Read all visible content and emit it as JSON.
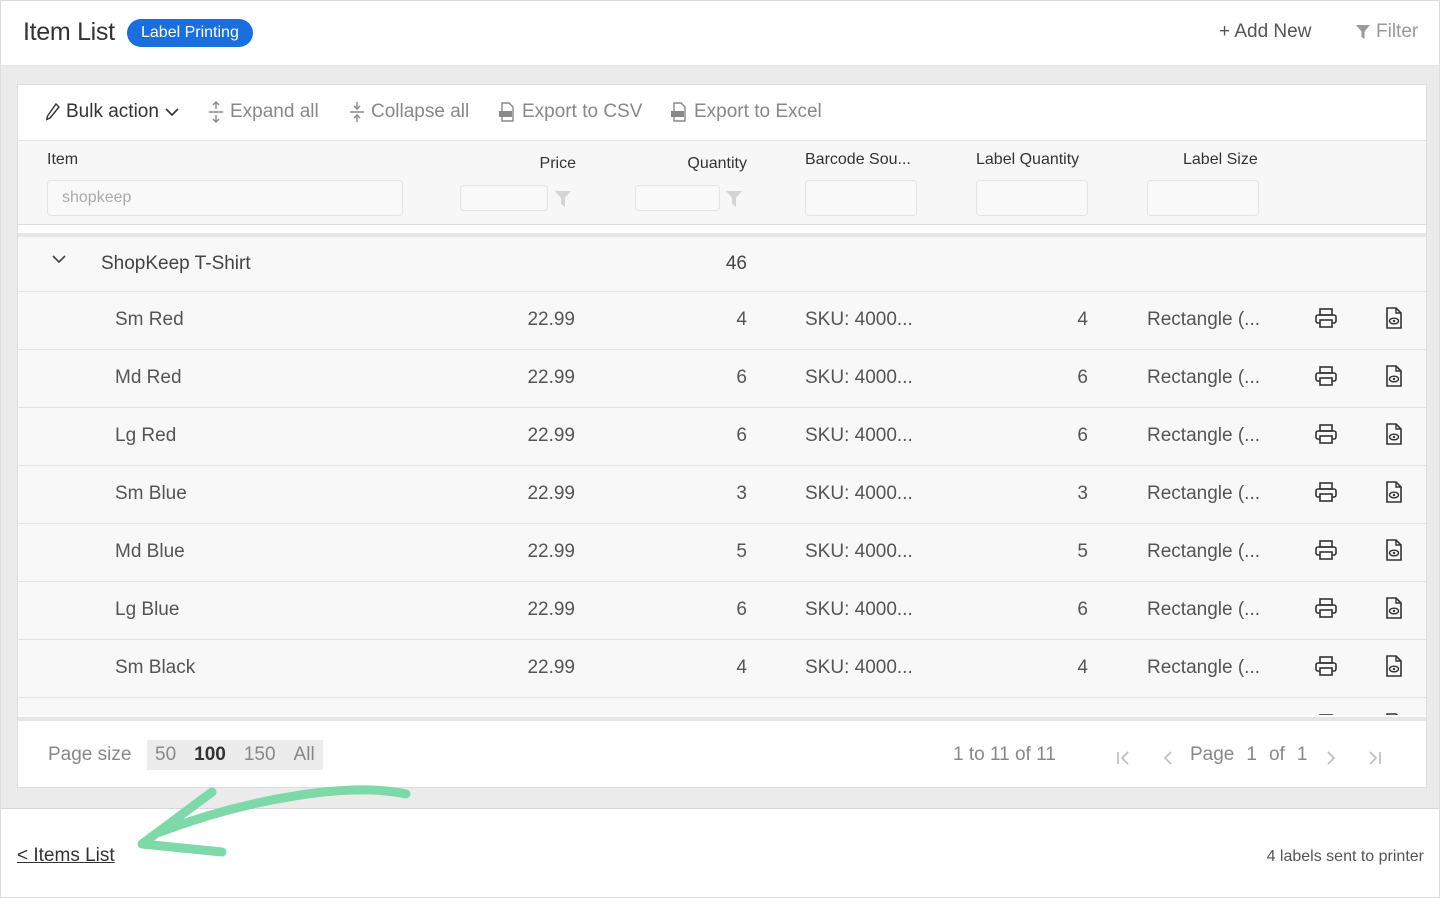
{
  "header": {
    "title": "Item List",
    "badge": "Label Printing",
    "add_new": "+ Add New",
    "filter": "Filter"
  },
  "toolbar": {
    "bulk_action": "Bulk action",
    "expand_all": "Expand all",
    "collapse_all": "Collapse all",
    "export_csv": "Export to CSV",
    "export_excel": "Export to Excel"
  },
  "columns": {
    "item": "Item",
    "price": "Price",
    "quantity": "Quantity",
    "barcode": "Barcode Sou...",
    "label_quantity": "Label Quantity",
    "label_size": "Label Size"
  },
  "filters": {
    "item_value": "shopkeep"
  },
  "group": {
    "name": "ShopKeep T-Shirt",
    "quantity": "46"
  },
  "rows": [
    {
      "item": "Sm Red",
      "price": "22.99",
      "quantity": "4",
      "barcode": "SKU: 4000...",
      "label_qty": "4",
      "label_size": "Rectangle (..."
    },
    {
      "item": "Md Red",
      "price": "22.99",
      "quantity": "6",
      "barcode": "SKU: 4000...",
      "label_qty": "6",
      "label_size": "Rectangle (..."
    },
    {
      "item": "Lg Red",
      "price": "22.99",
      "quantity": "6",
      "barcode": "SKU: 4000...",
      "label_qty": "6",
      "label_size": "Rectangle (..."
    },
    {
      "item": "Sm Blue",
      "price": "22.99",
      "quantity": "3",
      "barcode": "SKU: 4000...",
      "label_qty": "3",
      "label_size": "Rectangle (..."
    },
    {
      "item": "Md Blue",
      "price": "22.99",
      "quantity": "5",
      "barcode": "SKU: 4000...",
      "label_qty": "5",
      "label_size": "Rectangle (..."
    },
    {
      "item": "Lg Blue",
      "price": "22.99",
      "quantity": "6",
      "barcode": "SKU: 4000...",
      "label_qty": "6",
      "label_size": "Rectangle (..."
    },
    {
      "item": "Sm Black",
      "price": "22.99",
      "quantity": "4",
      "barcode": "SKU: 4000...",
      "label_qty": "4",
      "label_size": "Rectangle (..."
    }
  ],
  "pager": {
    "page_size_label": "Page size",
    "sizes": [
      "50",
      "100",
      "150",
      "All"
    ],
    "active_size": "100",
    "range": "1 to 11 of 11",
    "page_word": "Page",
    "page_current": "1",
    "of_word": "of",
    "page_total": "1"
  },
  "footer": {
    "back_link": "< Items List",
    "status": "4 labels sent to printer"
  },
  "colors": {
    "accent": "#1a6fe0",
    "annotation_arrow": "#7dd9a8"
  },
  "icons": {
    "row_print": "printer-icon",
    "row_preview": "file-preview-icon"
  }
}
